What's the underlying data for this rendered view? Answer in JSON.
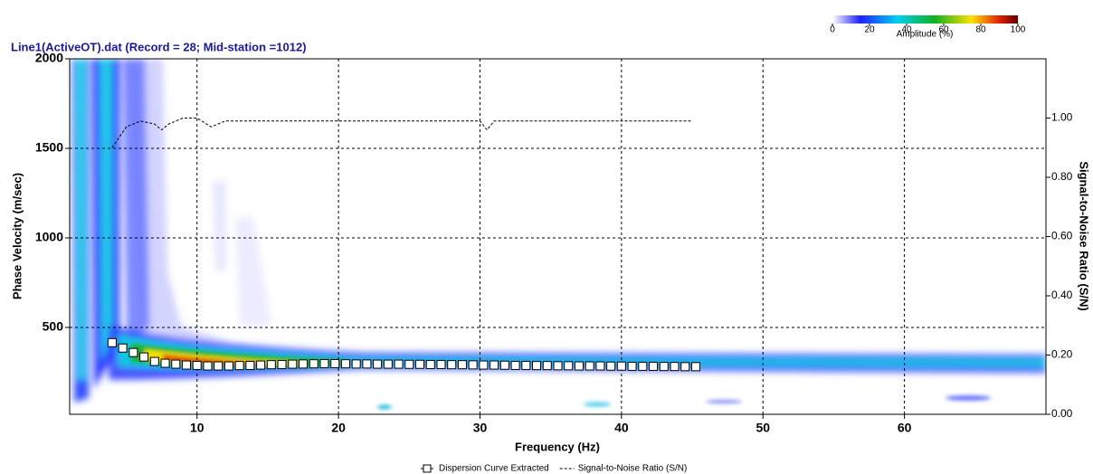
{
  "chart_data": {
    "type": "scatter",
    "title": "Line1(ActiveOT).dat  (Record = 28; Mid-station =1012)",
    "x_label": "Frequency (Hz)",
    "y_label": "Phase Velocity (m/sec)",
    "y2_label": "Signal-to-Noise Ratio (S/N)",
    "xlim": [
      1,
      70
    ],
    "xticks": [
      10,
      20,
      30,
      40,
      50,
      60
    ],
    "ylim": [
      15,
      2000
    ],
    "yticks": [
      500,
      1000,
      1500,
      2000
    ],
    "y2lim": [
      0,
      1.2
    ],
    "y2ticks": [
      {
        "value": 0,
        "label": "0.00"
      },
      {
        "value": 0.2,
        "label": "0.20"
      },
      {
        "value": 0.4,
        "label": "0.40"
      },
      {
        "value": 0.6,
        "label": "0.60"
      },
      {
        "value": 0.8,
        "label": "0.80"
      },
      {
        "value": 1,
        "label": "1.00"
      }
    ],
    "grid": true,
    "legend": "bottom",
    "series": [
      {
        "name": "Dispersion Curve Extracted",
        "color": "#000000",
        "marker": "square",
        "x": [
          4,
          4.75,
          5.5,
          6.25,
          7,
          7.75,
          8.5,
          9.25,
          10,
          10.75,
          11.5,
          12.25,
          13,
          13.75,
          14.5,
          15.25,
          16,
          16.75,
          17.5,
          18.25,
          19,
          19.75,
          20.5,
          21.25,
          22,
          22.75,
          23.5,
          24.25,
          25,
          25.75,
          26.5,
          27.25,
          28,
          28.75,
          29.5,
          30.25,
          31,
          31.75,
          32.5,
          33.25,
          34,
          34.75,
          35.5,
          36.25,
          37,
          37.75,
          38.5,
          39.25,
          40,
          40.75,
          41.5,
          42.25,
          43,
          43.75,
          44.5,
          45.25
        ],
        "values": [
          415,
          385,
          360,
          335,
          310,
          300,
          295,
          290,
          288,
          285,
          285,
          285,
          287,
          288,
          290,
          292,
          293,
          295,
          296,
          297,
          298,
          298,
          297,
          296,
          296,
          295,
          295,
          295,
          294,
          294,
          293,
          293,
          292,
          292,
          291,
          290,
          290,
          289,
          288,
          288,
          287,
          287,
          286,
          286,
          285,
          285,
          285,
          284,
          284,
          283,
          283,
          283,
          282,
          282,
          281,
          281
        ]
      },
      {
        "name": "Signal-to-Noise Ratio (S/N)",
        "color": "#000000",
        "axis": "y2",
        "style": "dashed",
        "x": [
          4,
          5,
          6,
          7,
          7.5,
          8,
          9,
          10,
          11,
          12,
          13,
          20,
          30,
          30.5,
          31,
          40,
          45
        ],
        "values": [
          0.9,
          0.97,
          0.99,
          0.98,
          0.96,
          0.98,
          1.0,
          1.0,
          0.97,
          0.99,
          0.99,
          0.99,
          0.99,
          0.96,
          0.99,
          0.99,
          0.99
        ]
      }
    ],
    "colorbar": {
      "label": "Amplitude (%)",
      "lim": [
        0,
        100
      ],
      "ticks": [
        0,
        20,
        40,
        60,
        80,
        100
      ]
    }
  }
}
